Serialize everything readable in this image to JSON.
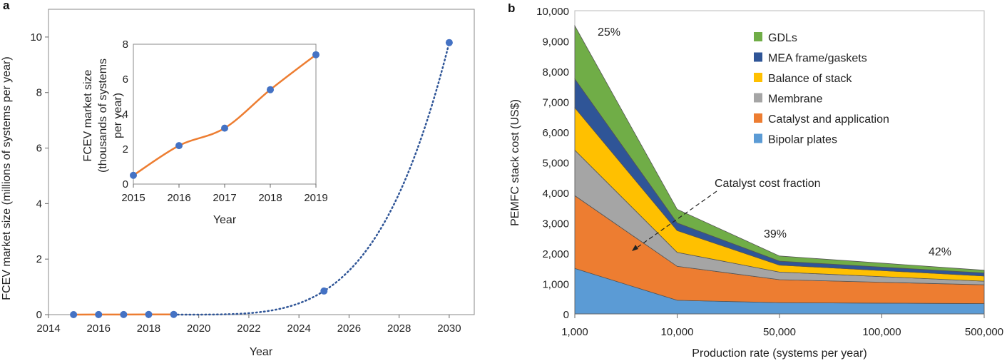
{
  "chart_data": [
    {
      "panel": "a",
      "type": "line",
      "xlabel": "Year",
      "ylabel": "FCEV market size (millions of systems per year)",
      "xlim": [
        2014,
        2031
      ],
      "ylim": [
        0,
        11
      ],
      "xticks": [
        2014,
        2016,
        2018,
        2020,
        2022,
        2024,
        2026,
        2028,
        2030
      ],
      "yticks": [
        0,
        2,
        4,
        6,
        8,
        10
      ],
      "series": [
        {
          "style": "solid",
          "color": "#ed7d31",
          "x": [
            2015,
            2016,
            2017,
            2018,
            2019
          ],
          "y": [
            0.0005,
            0.0022,
            0.0032,
            0.0054,
            0.0074
          ]
        },
        {
          "style": "dotted",
          "color": "#2f5597",
          "x": [
            2019,
            2025,
            2030
          ],
          "y": [
            0.0074,
            0.85,
            9.8
          ]
        }
      ],
      "marker_color": "#4472c4",
      "inset": {
        "type": "line",
        "xlabel": "Year",
        "ylabel_lines": [
          "FCEV market size",
          "(thousands of systems",
          "per year)"
        ],
        "xlim": [
          2015,
          2019
        ],
        "ylim": [
          0,
          8
        ],
        "xticks": [
          2015,
          2016,
          2017,
          2018,
          2019
        ],
        "yticks": [
          0,
          2,
          4,
          6,
          8
        ],
        "x": [
          2015,
          2016,
          2017,
          2018,
          2019
        ],
        "y": [
          0.5,
          2.2,
          3.2,
          5.4,
          7.4
        ],
        "color": "#ed7d31"
      }
    },
    {
      "panel": "b",
      "type": "area",
      "stacked": true,
      "xlabel": "Production rate (systems per year)",
      "ylabel": "PEMFC stack cost (US$)",
      "categories": [
        "1,000",
        "10,000",
        "50,000",
        "100,000",
        "500,000"
      ],
      "ylim": [
        0,
        10000
      ],
      "yticks": [
        "0",
        "1,000",
        "2,000",
        "3,000",
        "4,000",
        "5,000",
        "6,000",
        "7,000",
        "8,000",
        "9,000",
        "10,000"
      ],
      "legend_position": "top-right",
      "series": [
        {
          "name": "Bipolar plates",
          "color": "#5b9bd5",
          "values": [
            1500,
            450,
            370,
            355,
            340
          ]
        },
        {
          "name": "Catalyst and application",
          "color": "#ed7d31",
          "values": [
            2400,
            1120,
            760,
            690,
            620
          ]
        },
        {
          "name": "Membrane",
          "color": "#a5a5a5",
          "values": [
            1500,
            460,
            250,
            185,
            120
          ]
        },
        {
          "name": "Balance of stack",
          "color": "#ffc000",
          "values": [
            1400,
            720,
            230,
            200,
            170
          ]
        },
        {
          "name": "MEA frame/gaskets",
          "color": "#2f5597",
          "values": [
            950,
            250,
            130,
            115,
            100
          ]
        },
        {
          "name": "GDLs",
          "color": "#70ad47",
          "values": [
            1750,
            450,
            170,
            130,
            90
          ]
        }
      ],
      "annotations": {
        "catalyst_fraction_label": "Catalyst cost fraction",
        "percent_labels": [
          "25%",
          "39%",
          "42%"
        ]
      }
    }
  ]
}
